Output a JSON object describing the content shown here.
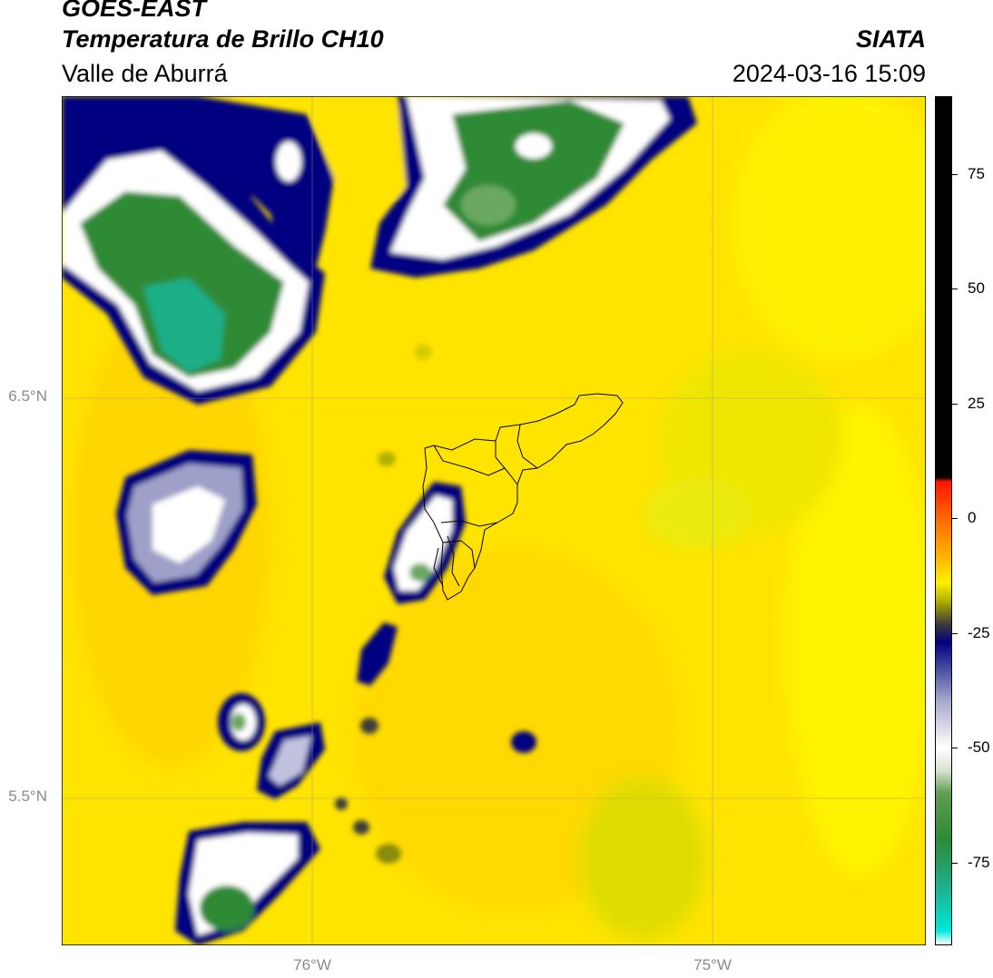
{
  "header": {
    "satellite": "GOES-EAST",
    "product": "Temperatura de Brillo CH10",
    "region": "Valle de Aburrá",
    "organization": "SIATA",
    "timestamp": "2024-03-16 15:09"
  },
  "map": {
    "lat_labels": [
      "6.5°N",
      "5.5°N"
    ],
    "lon_labels": [
      "76°W",
      "75°W"
    ]
  },
  "colorbar": {
    "ticks": [
      "75",
      "50",
      "25",
      "0",
      "-25",
      "-50",
      "-75"
    ],
    "tick_values": [
      75,
      50,
      25,
      0,
      -25,
      -50,
      -75
    ],
    "range": [
      -93,
      92
    ],
    "stops": [
      {
        "value": -93,
        "color": "#ffffff"
      },
      {
        "value": -90,
        "color": "#00e8dc"
      },
      {
        "value": -80,
        "color": "#1fae86"
      },
      {
        "value": -70,
        "color": "#2e8a35"
      },
      {
        "value": -60,
        "color": "#5f9e52"
      },
      {
        "value": -55,
        "color": "#d7e2d2"
      },
      {
        "value": -50,
        "color": "#ffffff"
      },
      {
        "value": -40,
        "color": "#a8aacb"
      },
      {
        "value": -33,
        "color": "#4a51a2"
      },
      {
        "value": -27,
        "color": "#000080"
      },
      {
        "value": -23,
        "color": "#3d3d3a"
      },
      {
        "value": -18,
        "color": "#b0b000"
      },
      {
        "value": -14,
        "color": "#fff000"
      },
      {
        "value": -8,
        "color": "#ffb000"
      },
      {
        "value": 0,
        "color": "#ff6800"
      },
      {
        "value": 8,
        "color": "#ff1400"
      },
      {
        "value": 9,
        "color": "#000000"
      },
      {
        "value": 92,
        "color": "#000000"
      }
    ]
  },
  "colors": {
    "background_field": "#ffe400",
    "cold_cloud_edge": "#000080",
    "cloud_core": "#2e8a35"
  }
}
